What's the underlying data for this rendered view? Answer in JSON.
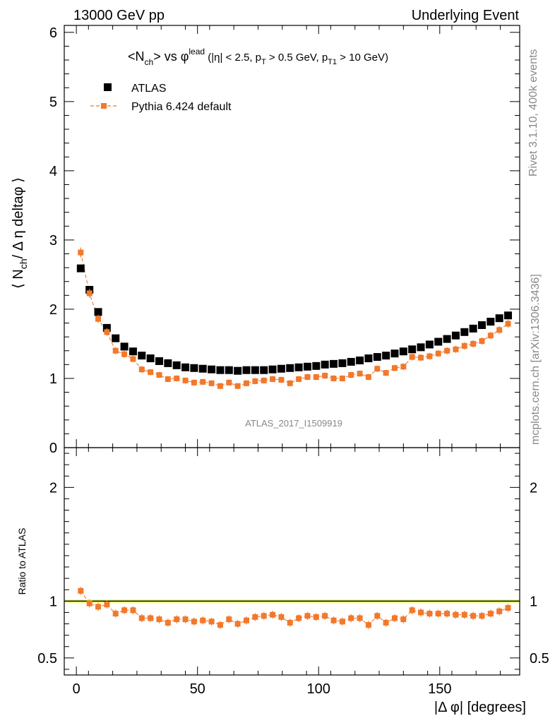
{
  "header": {
    "left": "13000 GeV pp",
    "right": "Underlying Event"
  },
  "title": {
    "main": "<N",
    "main_sub": "ch",
    "vs": "> vs φ",
    "vs_sup": "lead",
    "cuts_a": " (|η| < 2.5, p",
    "cuts_sub1": "T",
    "cuts_b": " > 0.5 GeV, p",
    "cuts_sub2": "T1",
    "cuts_c": " > 10 GeV)"
  },
  "side_labels": {
    "rivet": "Rivet 3.1.10,  400k events",
    "mcplots": "mcplots.cern.ch [arXiv:1306.3436]"
  },
  "watermark": "ATLAS_2017_I1509919",
  "axes": {
    "ylabel_main_a": "⟨ N",
    "ylabel_main_sub": "ch",
    "ylabel_main_b": "/ Δ η deltaφ ⟩",
    "ylabel_ratio": "Ratio to ATLAS",
    "xlabel": "|Δ φ| [degrees]"
  },
  "legend": [
    {
      "label": "ATLAS",
      "color": "#000000",
      "marker": "square"
    },
    {
      "label": "Pythia 6.424 default",
      "color": "#f2782b",
      "marker": "square-dashed"
    }
  ],
  "chart_data": {
    "type": "scatter",
    "x": [
      1.8,
      5.4,
      9.0,
      12.6,
      16.2,
      19.8,
      23.4,
      27.0,
      30.6,
      34.2,
      37.8,
      41.4,
      45.0,
      48.6,
      52.2,
      55.8,
      59.4,
      63.0,
      66.6,
      70.2,
      73.8,
      77.4,
      81.0,
      84.6,
      88.2,
      91.8,
      95.4,
      99.0,
      102.6,
      106.2,
      109.8,
      113.4,
      117.0,
      120.6,
      124.2,
      127.8,
      131.4,
      135.0,
      138.6,
      142.2,
      145.8,
      149.4,
      153.0,
      156.6,
      160.2,
      163.8,
      167.4,
      171.0,
      174.6,
      178.2
    ],
    "xlim": [
      -5,
      183
    ],
    "x_ticks": [
      0,
      50,
      100,
      150
    ],
    "series": [
      {
        "name": "ATLAS",
        "color": "#000000",
        "values": [
          2.59,
          2.28,
          1.96,
          1.73,
          1.58,
          1.46,
          1.39,
          1.33,
          1.29,
          1.25,
          1.22,
          1.19,
          1.16,
          1.15,
          1.14,
          1.13,
          1.12,
          1.12,
          1.11,
          1.12,
          1.12,
          1.12,
          1.13,
          1.14,
          1.15,
          1.16,
          1.17,
          1.18,
          1.2,
          1.21,
          1.22,
          1.24,
          1.26,
          1.29,
          1.31,
          1.33,
          1.36,
          1.39,
          1.42,
          1.45,
          1.49,
          1.53,
          1.57,
          1.62,
          1.67,
          1.72,
          1.77,
          1.82,
          1.87,
          1.91
        ]
      },
      {
        "name": "Pythia 6.424 default",
        "color": "#f2782b",
        "values": [
          2.82,
          2.23,
          1.86,
          1.67,
          1.4,
          1.35,
          1.28,
          1.13,
          1.09,
          1.05,
          0.99,
          1.0,
          0.97,
          0.94,
          0.95,
          0.93,
          0.89,
          0.94,
          0.89,
          0.93,
          0.96,
          0.97,
          0.99,
          0.98,
          0.93,
          0.99,
          1.02,
          1.02,
          1.04,
          1.0,
          1.0,
          1.05,
          1.07,
          1.02,
          1.14,
          1.08,
          1.15,
          1.17,
          1.31,
          1.3,
          1.32,
          1.36,
          1.4,
          1.42,
          1.47,
          1.5,
          1.54,
          1.62,
          1.7,
          1.79
        ]
      }
    ],
    "main_panel": {
      "ylim": [
        0,
        6.1
      ],
      "y_ticks": [
        0,
        1,
        2,
        3,
        4,
        5,
        6
      ]
    },
    "ratio_panel": {
      "ylim": [
        0.35,
        2.35
      ],
      "y_ticks": [
        0.5,
        1,
        2
      ],
      "values": [
        1.09,
        0.98,
        0.95,
        0.97,
        0.89,
        0.92,
        0.92,
        0.85,
        0.85,
        0.84,
        0.81,
        0.84,
        0.84,
        0.82,
        0.83,
        0.82,
        0.79,
        0.84,
        0.8,
        0.83,
        0.86,
        0.87,
        0.88,
        0.86,
        0.81,
        0.85,
        0.87,
        0.86,
        0.87,
        0.83,
        0.82,
        0.85,
        0.85,
        0.79,
        0.87,
        0.81,
        0.85,
        0.84,
        0.92,
        0.9,
        0.89,
        0.89,
        0.89,
        0.88,
        0.88,
        0.87,
        0.87,
        0.89,
        0.91,
        0.94
      ]
    }
  }
}
